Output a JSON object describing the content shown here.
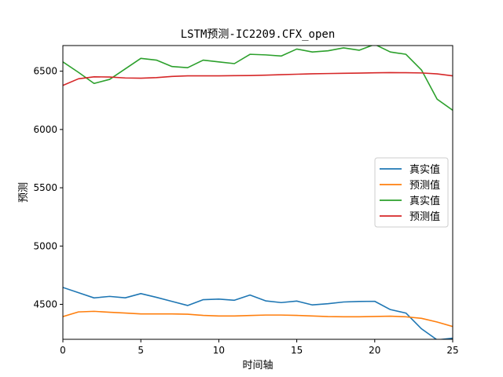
{
  "chart_data": {
    "type": "line",
    "title": "LSTM预测-IC2209.CFX_open",
    "xlabel": "时间轴",
    "ylabel": "预测",
    "xlim": [
      0,
      25
    ],
    "ylim": [
      4200,
      6720
    ],
    "xticks": [
      0,
      5,
      10,
      15,
      20,
      25
    ],
    "yticks": [
      4500,
      5000,
      5500,
      6000,
      6500
    ],
    "grid": false,
    "legend_position": "center-right",
    "series": [
      {
        "name": "真实值",
        "color": "#1f77b4",
        "x": [
          0,
          1,
          2,
          3,
          4,
          5,
          6,
          7,
          8,
          9,
          10,
          11,
          12,
          13,
          14,
          15,
          16,
          17,
          18,
          19,
          20,
          21,
          22,
          23,
          24,
          25
        ],
        "values": [
          4645,
          4600,
          4555,
          4568,
          4556,
          4592,
          4560,
          4525,
          4490,
          4540,
          4545,
          4535,
          4580,
          4530,
          4515,
          4528,
          4495,
          4505,
          4520,
          4525,
          4526,
          4455,
          4425,
          4290,
          4195,
          4210
        ]
      },
      {
        "name": "预测值",
        "color": "#ff7f0e",
        "x": [
          0,
          1,
          2,
          3,
          4,
          5,
          6,
          7,
          8,
          9,
          10,
          11,
          12,
          13,
          14,
          15,
          16,
          17,
          18,
          19,
          20,
          21,
          22,
          23,
          24,
          25
        ],
        "values": [
          4395,
          4435,
          4440,
          4432,
          4425,
          4418,
          4418,
          4418,
          4415,
          4405,
          4400,
          4400,
          4404,
          4408,
          4408,
          4405,
          4400,
          4395,
          4393,
          4393,
          4396,
          4398,
          4393,
          4380,
          4348,
          4310
        ]
      },
      {
        "name": "真实值",
        "color": "#2ca02c",
        "x": [
          0,
          1,
          2,
          3,
          4,
          5,
          6,
          7,
          8,
          9,
          10,
          11,
          12,
          13,
          14,
          15,
          16,
          17,
          18,
          19,
          20,
          21,
          22,
          23,
          24,
          25
        ],
        "values": [
          6580,
          6490,
          6395,
          6430,
          6520,
          6610,
          6595,
          6540,
          6530,
          6595,
          6580,
          6565,
          6645,
          6640,
          6630,
          6690,
          6665,
          6675,
          6700,
          6680,
          6730,
          6665,
          6645,
          6510,
          6260,
          6165
        ]
      },
      {
        "name": "预测值",
        "color": "#d62728",
        "x": [
          0,
          1,
          2,
          3,
          4,
          5,
          6,
          7,
          8,
          9,
          10,
          11,
          12,
          13,
          14,
          15,
          16,
          17,
          18,
          19,
          20,
          21,
          22,
          23,
          24,
          25
        ],
        "values": [
          6378,
          6435,
          6452,
          6450,
          6442,
          6440,
          6445,
          6455,
          6460,
          6460,
          6460,
          6462,
          6463,
          6466,
          6470,
          6474,
          6478,
          6480,
          6482,
          6484,
          6486,
          6488,
          6487,
          6485,
          6477,
          6460
        ]
      }
    ]
  }
}
